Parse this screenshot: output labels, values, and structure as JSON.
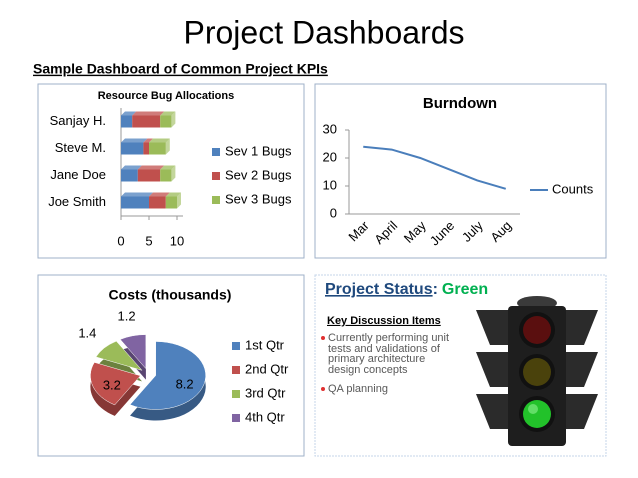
{
  "title": "Project Dashboards",
  "subtitle": "Sample Dashboard of Common Project KPIs",
  "chart_data": [
    {
      "type": "bar",
      "orientation": "horizontal",
      "stacked": true,
      "title": "Resource Bug Allocations",
      "categories": [
        "Sanjay H.",
        "Steve M.",
        "Jane Doe",
        "Joe Smith"
      ],
      "series": [
        {
          "name": "Sev 1 Bugs",
          "color": "#4f81bd",
          "values": [
            2,
            4,
            3,
            5
          ]
        },
        {
          "name": "Sev 2 Bugs",
          "color": "#c0504d",
          "values": [
            5,
            1,
            4,
            3
          ]
        },
        {
          "name": "Sev 3 Bugs",
          "color": "#9bbb59",
          "values": [
            2,
            3,
            2,
            2
          ]
        }
      ],
      "xlim": [
        0,
        10
      ],
      "xticks": [
        0,
        5,
        10
      ],
      "legend": "right"
    },
    {
      "type": "line",
      "title": "Burndown",
      "categories": [
        "Mar",
        "April",
        "May",
        "June",
        "July",
        "Aug"
      ],
      "series": [
        {
          "name": "Counts",
          "color": "#4a7ebb",
          "values": [
            24,
            23,
            20,
            16,
            12,
            9
          ]
        }
      ],
      "ylim": [
        0,
        30
      ],
      "yticks": [
        0,
        10,
        20,
        30
      ],
      "legend": "right"
    },
    {
      "type": "pie",
      "title": "Costs (thousands)",
      "categories": [
        "1st Qtr",
        "2nd Qtr",
        "3rd Qtr",
        "4th Qtr"
      ],
      "values": [
        8.2,
        3.2,
        1.4,
        1.2
      ],
      "colors": [
        "#4f81bd",
        "#c0504d",
        "#9bbb59",
        "#8064a2"
      ],
      "legend": "right"
    }
  ],
  "status_panel": {
    "label": "Project Status",
    "separator": ":",
    "status": "Green",
    "section": "Key Discussion Items",
    "items": [
      "Currently performing unit tests and validations of primary architecture design concepts",
      "QA planning"
    ]
  }
}
